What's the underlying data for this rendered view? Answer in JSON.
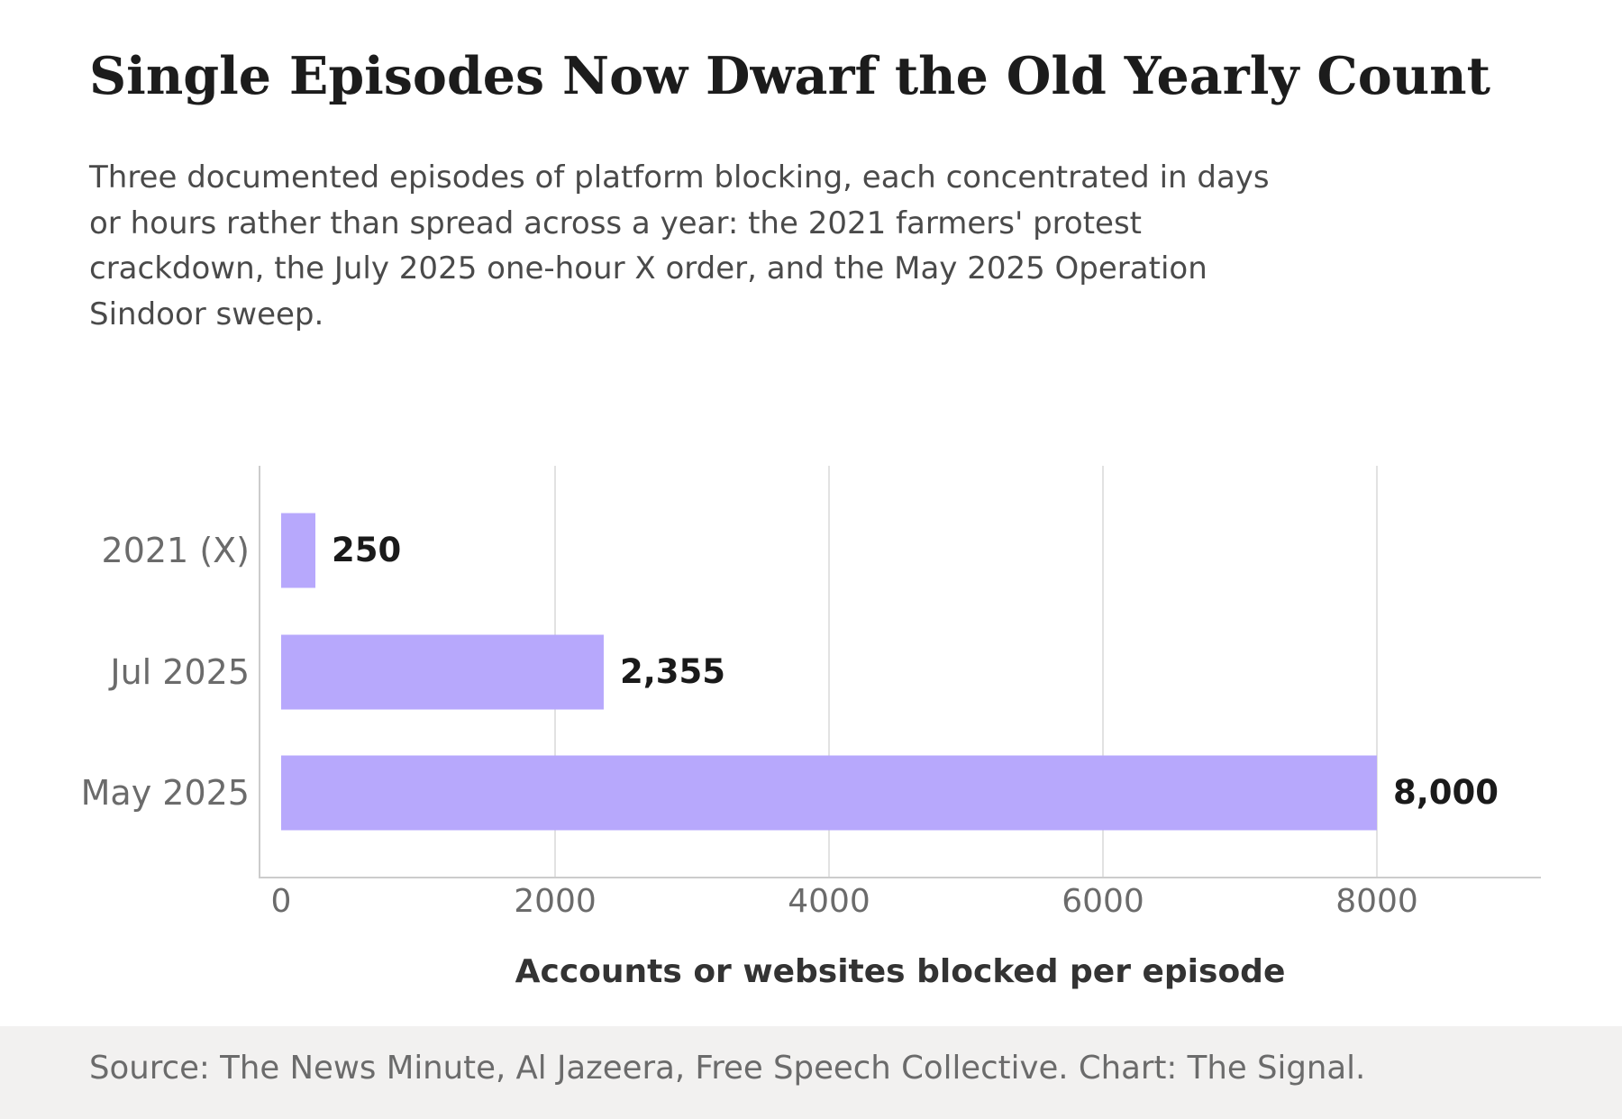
{
  "title": "Single Episodes Now Dwarf the Old Yearly Count",
  "subtitle": "Three documented episodes of platform blocking, each concentrated in days or hours rather than spread across a year: the 2021 farmers' protest crackdown, the July 2025 one-hour X order, and the May 2025 Operation Sindoor sweep.",
  "source": "Source: The News Minute, Al Jazeera, Free Speech Collective. Chart: The Signal.",
  "colors": {
    "bar": "#b7a8fc",
    "grid": "#e2e2e2",
    "axis": "#cccccc",
    "tick_text": "#6b6b6b",
    "label_text": "#1a1a1a",
    "xlabel_text": "#333333",
    "footer_bg": "#f2f1f0"
  },
  "chart_data": {
    "type": "bar",
    "orientation": "horizontal",
    "categories": [
      "2021 (X)",
      "Jul 2025",
      "May 2025"
    ],
    "values": [
      250,
      2355,
      8000
    ],
    "value_labels": [
      "250",
      "2,355",
      "8,000"
    ],
    "xlabel": "Accounts or websites blocked per episode",
    "ylabel": "",
    "xlim": [
      0,
      9200
    ],
    "xticks": [
      0,
      2000,
      4000,
      6000,
      8000
    ],
    "xtick_labels": [
      "0",
      "2000",
      "4000",
      "6000",
      "8000"
    ],
    "grid": "vertical"
  }
}
